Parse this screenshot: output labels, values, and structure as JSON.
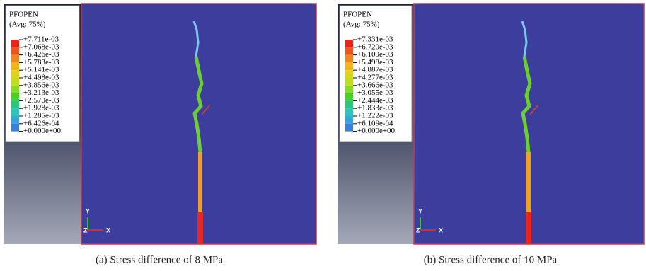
{
  "panels": [
    {
      "legend_title": "PFOPEN",
      "legend_subtitle": "(Avg: 75%)",
      "legend_labels": [
        "+7.711e-03",
        "+7.068e-03",
        "+6.426e-03",
        "+5.783e-03",
        "+5.141e-03",
        "+4.498e-03",
        "+3.856e-03",
        "+3.213e-03",
        "+2.570e-03",
        "+1.928e-03",
        "+1.285e-03",
        "+6.426e-04",
        "+0.000e+00"
      ],
      "axes": [
        "Y",
        "Z",
        "X"
      ],
      "caption": "(a) Stress difference of 8 MPa"
    },
    {
      "legend_title": "PFOPEN",
      "legend_subtitle": "(Avg: 75%)",
      "legend_labels": [
        "+7.331e-03",
        "+6.720e-03",
        "+6.109e-03",
        "+5.498e-03",
        "+4.887e-03",
        "+4.277e-03",
        "+3.666e-03",
        "+3.055e-03",
        "+2.444e-03",
        "+1.833e-03",
        "+1.222e-03",
        "+6.109e-04",
        "+0.000e+00"
      ],
      "axes": [
        "Y",
        "Z",
        "X"
      ],
      "caption": "(b) Stress difference of 10 MPa"
    }
  ]
}
